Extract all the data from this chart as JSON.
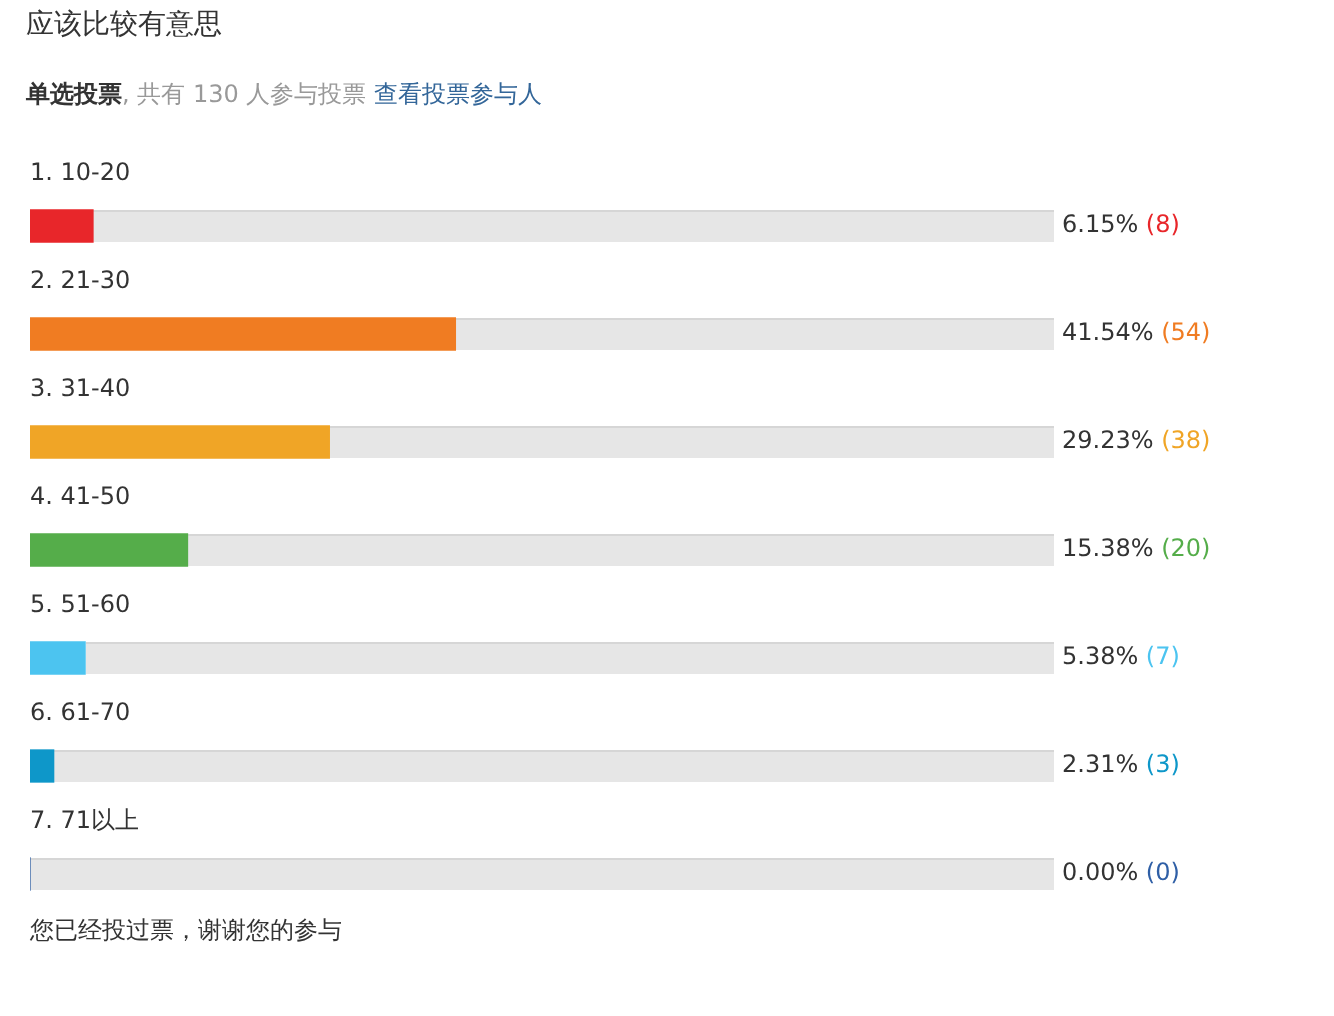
{
  "chart_data": {
    "type": "bar",
    "orientation": "horizontal",
    "title": "应该比较有意思",
    "subtitle": "单选投票, 共有 130 人参与投票 查看投票参与人",
    "categories": [
      "1. 10-20",
      "2. 21-30",
      "3. 31-40",
      "4. 41-50",
      "5. 51-60",
      "6. 61-70",
      "7. 71以上"
    ],
    "values": [
      6.15,
      41.54,
      29.23,
      15.38,
      5.38,
      2.31,
      0.0
    ],
    "colors": [
      "#e8262a",
      "#f07c22",
      "#f0a526",
      "#55ad4a",
      "#4cc4f0",
      "#0e97c9",
      "#2f5fa6"
    ],
    "value_labels": [
      "6.15% (8)",
      "41.54% (54)",
      "29.23% (38)",
      "15.38% (20)",
      "5.38% (7)",
      "2.31% (3)",
      "0.00% (0)"
    ],
    "xlim": [
      0,
      100
    ],
    "tick_labels": "y",
    "annotations": [
      "您已经投过票，谢谢您的参与"
    ]
  }
}
